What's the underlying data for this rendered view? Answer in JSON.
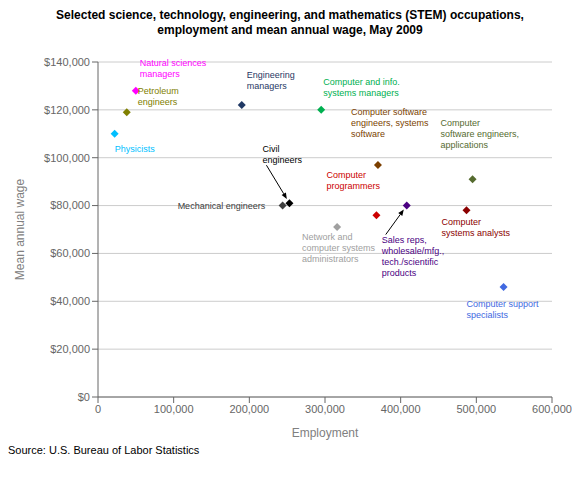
{
  "chart_data": {
    "type": "scatter",
    "title": "Selected science, technology, engineering, and mathematics (STEM) occupations,\nemployment and mean annual wage, May 2009",
    "xlabel": "Employment",
    "ylabel": "Mean annual wage",
    "source": "Source: U.S. Bureau of Labor Statistics",
    "xlim": [
      0,
      600000
    ],
    "ylim": [
      0,
      140000
    ],
    "xticks": [
      0,
      {
        "value": 100000,
        "label": "100,000"
      },
      {
        "value": 200000,
        "label": "200,000"
      },
      {
        "value": 300000,
        "label": "300,000"
      },
      {
        "value": 400000,
        "label": "400,000"
      },
      {
        "value": 500000,
        "label": "500,000"
      },
      {
        "value": 600000,
        "label": "600,000"
      }
    ],
    "yticks": [
      {
        "value": 0,
        "label": "$0"
      },
      {
        "value": 20000,
        "label": "$20,000"
      },
      {
        "value": 40000,
        "label": "$40,000"
      },
      {
        "value": 60000,
        "label": "$60,000"
      },
      {
        "value": 80000,
        "label": "$80,000"
      },
      {
        "value": 100000,
        "label": "$100,000"
      },
      {
        "value": 120000,
        "label": "$120,000"
      },
      {
        "value": 140000,
        "label": "$140,000"
      }
    ],
    "grid": true,
    "marker": "diamond",
    "x": [
      50000,
      38000,
      22000,
      190000,
      295000,
      370000,
      495000,
      253000,
      244000,
      368000,
      316000,
      408000,
      487000,
      536000
    ],
    "values": [
      128000,
      119000,
      110000,
      122000,
      120000,
      97000,
      91000,
      81000,
      80000,
      76000,
      71000,
      80000,
      78000,
      46000
    ],
    "colors": [
      "#FF00FF",
      "#808000",
      "#00BFFF",
      "#1F3864",
      "#00B050",
      "#7B3F00",
      "#556B2F",
      "#000000",
      "#404040",
      "#CC0000",
      "#A0A0A0",
      "#4B0082",
      "#8B0000",
      "#4169E1"
    ],
    "annotations": [
      "Natural sciences\nmanagers",
      "Petroleum\nengineers",
      "Physicists",
      "Engineering\nmanagers",
      "Computer and info.\nsystems managers",
      "Computer software\nengineers, systems\nsoftware",
      "Computer\nsoftware engineers,\napplications",
      "Civil\nengineers",
      "Mechanical engineers",
      "Computer\nprogrammers",
      "Network and\ncomputer systems\nadministrators",
      "Sales reps,\nwholesale/mfg.,\ntech./scientific\nproducts",
      "Computer\nsystems analysts",
      "Computer support\nspecialists"
    ]
  }
}
